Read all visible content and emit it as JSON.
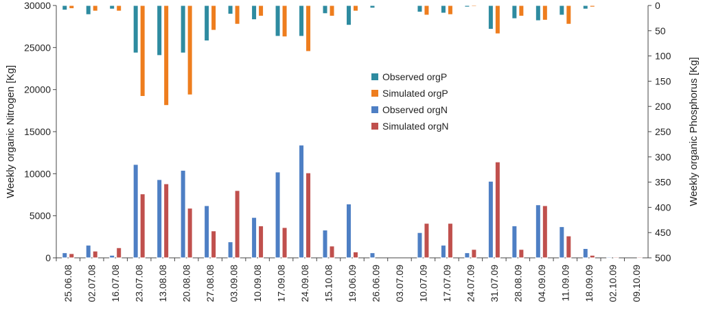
{
  "chart_data": {
    "type": "bar",
    "title": "",
    "xlabel": "",
    "ylabel": "Weekly organic Nitrogen [Kg]",
    "y2label": "Weekly organic Phosphorus [Kg]",
    "ylim": [
      0,
      30000
    ],
    "y2lim": [
      0,
      500
    ],
    "y2_inverted": true,
    "yticks": [
      "0",
      "5000",
      "10000",
      "15000",
      "20000",
      "25000",
      "30000"
    ],
    "y2ticks": [
      "0",
      "50",
      "100",
      "150",
      "200",
      "250",
      "300",
      "350",
      "400",
      "450",
      "500"
    ],
    "legend_position": "center-right",
    "categories": [
      "25.06.08",
      "02.07.08",
      "16.07.08",
      "23.07.08",
      "13.08.08",
      "20.08.08",
      "27.08.08",
      "03.09.08",
      "10.09.08",
      "17.09.08",
      "24.09.08",
      "15.10.08",
      "19.06.09",
      "26.06.09",
      "03.07.09",
      "10.07.09",
      "17.07.09",
      "24.07.09",
      "31.07.09",
      "28.08.09",
      "04.09.09",
      "11.09.09",
      "18.09.09",
      "02.10.09",
      "09.10.09"
    ],
    "series": [
      {
        "name": "Observed orgP",
        "axis": "right",
        "color": "#2e8ba0",
        "values": [
          9,
          18,
          7,
          94,
          99,
          94,
          70,
          17,
          28,
          61,
          61,
          16,
          39,
          5,
          1,
          13,
          15,
          3,
          47,
          26,
          30,
          19,
          7,
          1,
          1
        ]
      },
      {
        "name": "Simulated orgP",
        "axis": "right",
        "color": "#ee7d1e",
        "values": [
          6,
          11,
          11,
          180,
          198,
          177,
          49,
          37,
          21,
          62,
          91,
          21,
          11,
          1,
          1,
          19,
          18,
          2,
          56,
          21,
          29,
          37,
          3,
          1,
          1
        ]
      },
      {
        "name": "Observed orgN",
        "axis": "left",
        "color": "#4e7fc4",
        "values": [
          600,
          1500,
          300,
          11100,
          9300,
          10400,
          6200,
          1900,
          4800,
          10200,
          13400,
          3300,
          6400,
          600,
          0,
          3000,
          1500,
          600,
          9100,
          3800,
          6300,
          3700,
          1100,
          100,
          0
        ]
      },
      {
        "name": "Simulated orgN",
        "axis": "left",
        "color": "#c0504d",
        "values": [
          500,
          800,
          1200,
          7600,
          8800,
          5900,
          3200,
          8000,
          3800,
          3600,
          10100,
          1400,
          700,
          0,
          0,
          4100,
          4100,
          1000,
          11400,
          1000,
          6200,
          2600,
          300,
          100,
          100
        ]
      }
    ]
  }
}
